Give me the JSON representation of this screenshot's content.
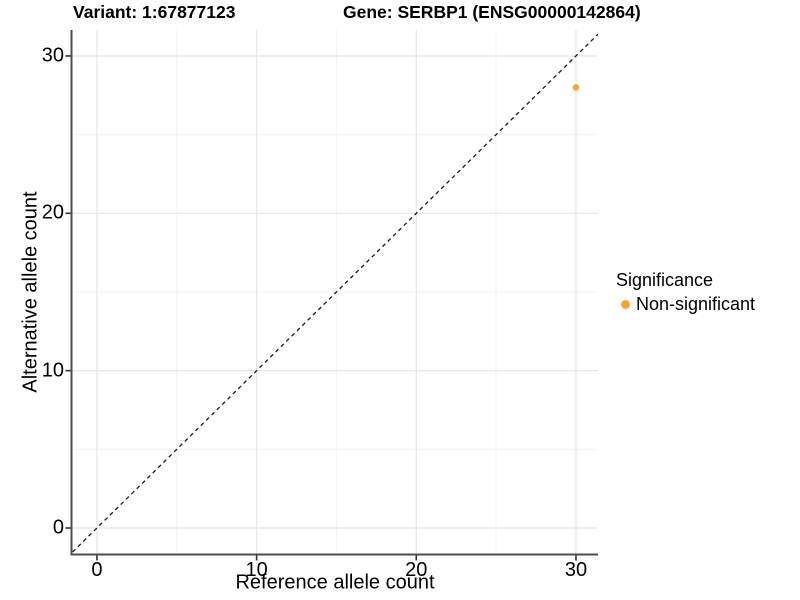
{
  "titles": {
    "variant": "Variant: 1:67877123",
    "gene": "Gene: SERBP1 (ENSG00000142864)"
  },
  "chart_data": {
    "type": "scatter",
    "xlabel": "Reference allele count",
    "ylabel": "Alternative allele count",
    "x_ticks": [
      0,
      10,
      20,
      30
    ],
    "y_ticks": [
      0,
      10,
      20,
      30
    ],
    "x_minor_ticks": [
      5,
      15,
      25
    ],
    "y_minor_ticks": [
      5,
      15,
      25
    ],
    "xlim": [
      -1.53,
      31.38
    ],
    "ylim": [
      -1.62,
      31.65
    ],
    "grid": "major+minor",
    "points": [
      {
        "x": 30,
        "y": 28,
        "series": "Non-significant"
      }
    ],
    "identity_line": {
      "slope": 1,
      "intercept": 0,
      "style": "dashed"
    },
    "legend": {
      "title": "Significance",
      "position": "right",
      "items": [
        {
          "label": "Non-significant",
          "color": "#FAA232"
        }
      ]
    }
  },
  "colors": {
    "point": "#FAA232",
    "axis_line": "#4E4E4E",
    "tick_mark": "#333333",
    "grid_major": "#E6E6E6",
    "grid_minor": "#F3F3F3",
    "identity_line": "#1A1A1A",
    "text": "#000000"
  }
}
